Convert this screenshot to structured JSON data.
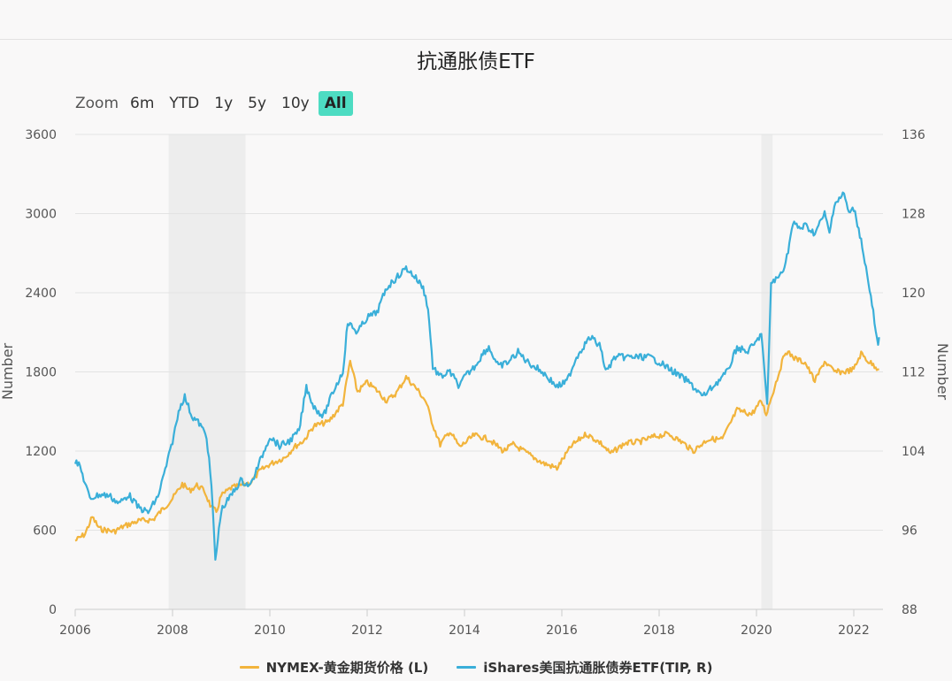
{
  "chart_data": {
    "type": "line",
    "title": "抗通胀债ETF",
    "ylabel_left": "Number",
    "ylabel_right": "Number",
    "x_ticks": [
      "2006",
      "2008",
      "2010",
      "2012",
      "2014",
      "2016",
      "2018",
      "2020",
      "2022"
    ],
    "y_left_ticks": [
      "0",
      "600",
      "1200",
      "1800",
      "2400",
      "3000",
      "3600"
    ],
    "y_right_ticks": [
      "88",
      "96",
      "104",
      "112",
      "120",
      "128",
      "136"
    ],
    "ylim_left": [
      0,
      3600
    ],
    "ylim_right": [
      88,
      136
    ],
    "xlim": [
      2006.0,
      2022.6
    ],
    "grid": true,
    "legend_position": "bottom-center",
    "shaded_periods": [
      [
        2007.92,
        2009.5
      ],
      [
        2020.1,
        2020.33
      ]
    ],
    "series": [
      {
        "name": "NYMEX-黄金期货价格 (L)",
        "axis": "left",
        "color": "#f2b43c",
        "points": [
          [
            2006.0,
            520
          ],
          [
            2006.2,
            570
          ],
          [
            2006.35,
            700
          ],
          [
            2006.5,
            610
          ],
          [
            2006.8,
            590
          ],
          [
            2007.0,
            630
          ],
          [
            2007.3,
            670
          ],
          [
            2007.6,
            680
          ],
          [
            2007.8,
            760
          ],
          [
            2008.0,
            840
          ],
          [
            2008.2,
            950
          ],
          [
            2008.35,
            900
          ],
          [
            2008.5,
            940
          ],
          [
            2008.65,
            900
          ],
          [
            2008.8,
            770
          ],
          [
            2008.9,
            740
          ],
          [
            2009.0,
            860
          ],
          [
            2009.2,
            920
          ],
          [
            2009.4,
            940
          ],
          [
            2009.6,
            960
          ],
          [
            2009.8,
            1050
          ],
          [
            2010.0,
            1100
          ],
          [
            2010.3,
            1150
          ],
          [
            2010.5,
            1230
          ],
          [
            2010.7,
            1280
          ],
          [
            2010.9,
            1390
          ],
          [
            2011.2,
            1420
          ],
          [
            2011.5,
            1560
          ],
          [
            2011.65,
            1880
          ],
          [
            2011.8,
            1650
          ],
          [
            2012.0,
            1720
          ],
          [
            2012.2,
            1660
          ],
          [
            2012.4,
            1580
          ],
          [
            2012.6,
            1640
          ],
          [
            2012.8,
            1760
          ],
          [
            2013.0,
            1680
          ],
          [
            2013.2,
            1580
          ],
          [
            2013.35,
            1400
          ],
          [
            2013.5,
            1250
          ],
          [
            2013.7,
            1350
          ],
          [
            2013.9,
            1230
          ],
          [
            2014.2,
            1320
          ],
          [
            2014.5,
            1290
          ],
          [
            2014.8,
            1200
          ],
          [
            2015.0,
            1250
          ],
          [
            2015.3,
            1180
          ],
          [
            2015.6,
            1110
          ],
          [
            2015.9,
            1070
          ],
          [
            2016.2,
            1240
          ],
          [
            2016.5,
            1330
          ],
          [
            2016.8,
            1260
          ],
          [
            2017.0,
            1180
          ],
          [
            2017.3,
            1260
          ],
          [
            2017.6,
            1270
          ],
          [
            2017.9,
            1310
          ],
          [
            2018.2,
            1330
          ],
          [
            2018.5,
            1260
          ],
          [
            2018.7,
            1200
          ],
          [
            2019.0,
            1290
          ],
          [
            2019.3,
            1290
          ],
          [
            2019.6,
            1510
          ],
          [
            2019.9,
            1480
          ],
          [
            2020.1,
            1580
          ],
          [
            2020.2,
            1480
          ],
          [
            2020.4,
            1720
          ],
          [
            2020.6,
            1960
          ],
          [
            2020.8,
            1900
          ],
          [
            2021.0,
            1870
          ],
          [
            2021.2,
            1730
          ],
          [
            2021.4,
            1880
          ],
          [
            2021.6,
            1800
          ],
          [
            2021.8,
            1800
          ],
          [
            2022.0,
            1820
          ],
          [
            2022.15,
            1940
          ],
          [
            2022.3,
            1880
          ],
          [
            2022.45,
            1840
          ],
          [
            2022.52,
            1820
          ]
        ]
      },
      {
        "name": "iShares美国抗通胀债券ETF(TIP, R)",
        "axis": "right",
        "color": "#3aafd9",
        "points": [
          [
            2006.0,
            103
          ],
          [
            2006.1,
            102.4
          ],
          [
            2006.3,
            99.2
          ],
          [
            2006.5,
            99.6
          ],
          [
            2006.7,
            99.5
          ],
          [
            2006.9,
            98.7
          ],
          [
            2007.1,
            99.6
          ],
          [
            2007.3,
            98.3
          ],
          [
            2007.5,
            97.8
          ],
          [
            2007.7,
            99.4
          ],
          [
            2007.9,
            103.0
          ],
          [
            2008.0,
            105.0
          ],
          [
            2008.15,
            108.5
          ],
          [
            2008.25,
            109.5
          ],
          [
            2008.4,
            107.5
          ],
          [
            2008.55,
            106.8
          ],
          [
            2008.7,
            105.5
          ],
          [
            2008.8,
            100.5
          ],
          [
            2008.88,
            93.0
          ],
          [
            2008.93,
            95.0
          ],
          [
            2009.0,
            98.0
          ],
          [
            2009.2,
            99.5
          ],
          [
            2009.4,
            101.0
          ],
          [
            2009.6,
            100.5
          ],
          [
            2009.8,
            103.0
          ],
          [
            2010.0,
            105.5
          ],
          [
            2010.2,
            104.5
          ],
          [
            2010.4,
            105.0
          ],
          [
            2010.6,
            106.0
          ],
          [
            2010.75,
            110.5
          ],
          [
            2010.9,
            108.5
          ],
          [
            2011.1,
            107.5
          ],
          [
            2011.3,
            110.0
          ],
          [
            2011.5,
            112.0
          ],
          [
            2011.6,
            117.0
          ],
          [
            2011.8,
            116.0
          ],
          [
            2012.0,
            117.5
          ],
          [
            2012.2,
            118.0
          ],
          [
            2012.4,
            120.5
          ],
          [
            2012.6,
            121.5
          ],
          [
            2012.8,
            122.5
          ],
          [
            2013.0,
            121.5
          ],
          [
            2013.15,
            120.5
          ],
          [
            2013.25,
            118.5
          ],
          [
            2013.35,
            112.5
          ],
          [
            2013.5,
            111.5
          ],
          [
            2013.7,
            112.0
          ],
          [
            2013.9,
            110.5
          ],
          [
            2014.0,
            111.5
          ],
          [
            2014.2,
            112.5
          ],
          [
            2014.4,
            114.0
          ],
          [
            2014.5,
            114.5
          ],
          [
            2014.7,
            112.5
          ],
          [
            2014.9,
            113.0
          ],
          [
            2015.1,
            114.0
          ],
          [
            2015.3,
            113.0
          ],
          [
            2015.6,
            112.0
          ],
          [
            2015.9,
            110.5
          ],
          [
            2016.1,
            111.0
          ],
          [
            2016.3,
            113.5
          ],
          [
            2016.5,
            115.0
          ],
          [
            2016.6,
            115.5
          ],
          [
            2016.8,
            114.5
          ],
          [
            2016.9,
            112.0
          ],
          [
            2017.1,
            113.5
          ],
          [
            2017.3,
            113.5
          ],
          [
            2017.6,
            113.5
          ],
          [
            2017.8,
            113.5
          ],
          [
            2018.0,
            113.0
          ],
          [
            2018.3,
            112.0
          ],
          [
            2018.6,
            111.0
          ],
          [
            2018.9,
            109.5
          ],
          [
            2019.1,
            110.5
          ],
          [
            2019.4,
            112.0
          ],
          [
            2019.6,
            114.5
          ],
          [
            2019.8,
            114.0
          ],
          [
            2020.0,
            115.0
          ],
          [
            2020.1,
            116.0
          ],
          [
            2020.18,
            111.0
          ],
          [
            2020.22,
            108.5
          ],
          [
            2020.3,
            121.0
          ],
          [
            2020.45,
            121.5
          ],
          [
            2020.6,
            123.0
          ],
          [
            2020.75,
            127.0
          ],
          [
            2020.9,
            126.5
          ],
          [
            2021.0,
            126.8
          ],
          [
            2021.2,
            126.0
          ],
          [
            2021.4,
            128.0
          ],
          [
            2021.5,
            126.0
          ],
          [
            2021.6,
            129.0
          ],
          [
            2021.7,
            129.5
          ],
          [
            2021.8,
            130.0
          ],
          [
            2021.9,
            128.0
          ],
          [
            2022.0,
            128.5
          ],
          [
            2022.1,
            126.5
          ],
          [
            2022.2,
            124.0
          ],
          [
            2022.3,
            121.0
          ],
          [
            2022.4,
            118.0
          ],
          [
            2022.45,
            116.0
          ],
          [
            2022.5,
            114.5
          ],
          [
            2022.52,
            115.5
          ]
        ]
      }
    ]
  },
  "zoom": {
    "label": "Zoom",
    "buttons": [
      "6m",
      "YTD",
      "1y",
      "5y",
      "10y",
      "All"
    ],
    "active": "All"
  }
}
